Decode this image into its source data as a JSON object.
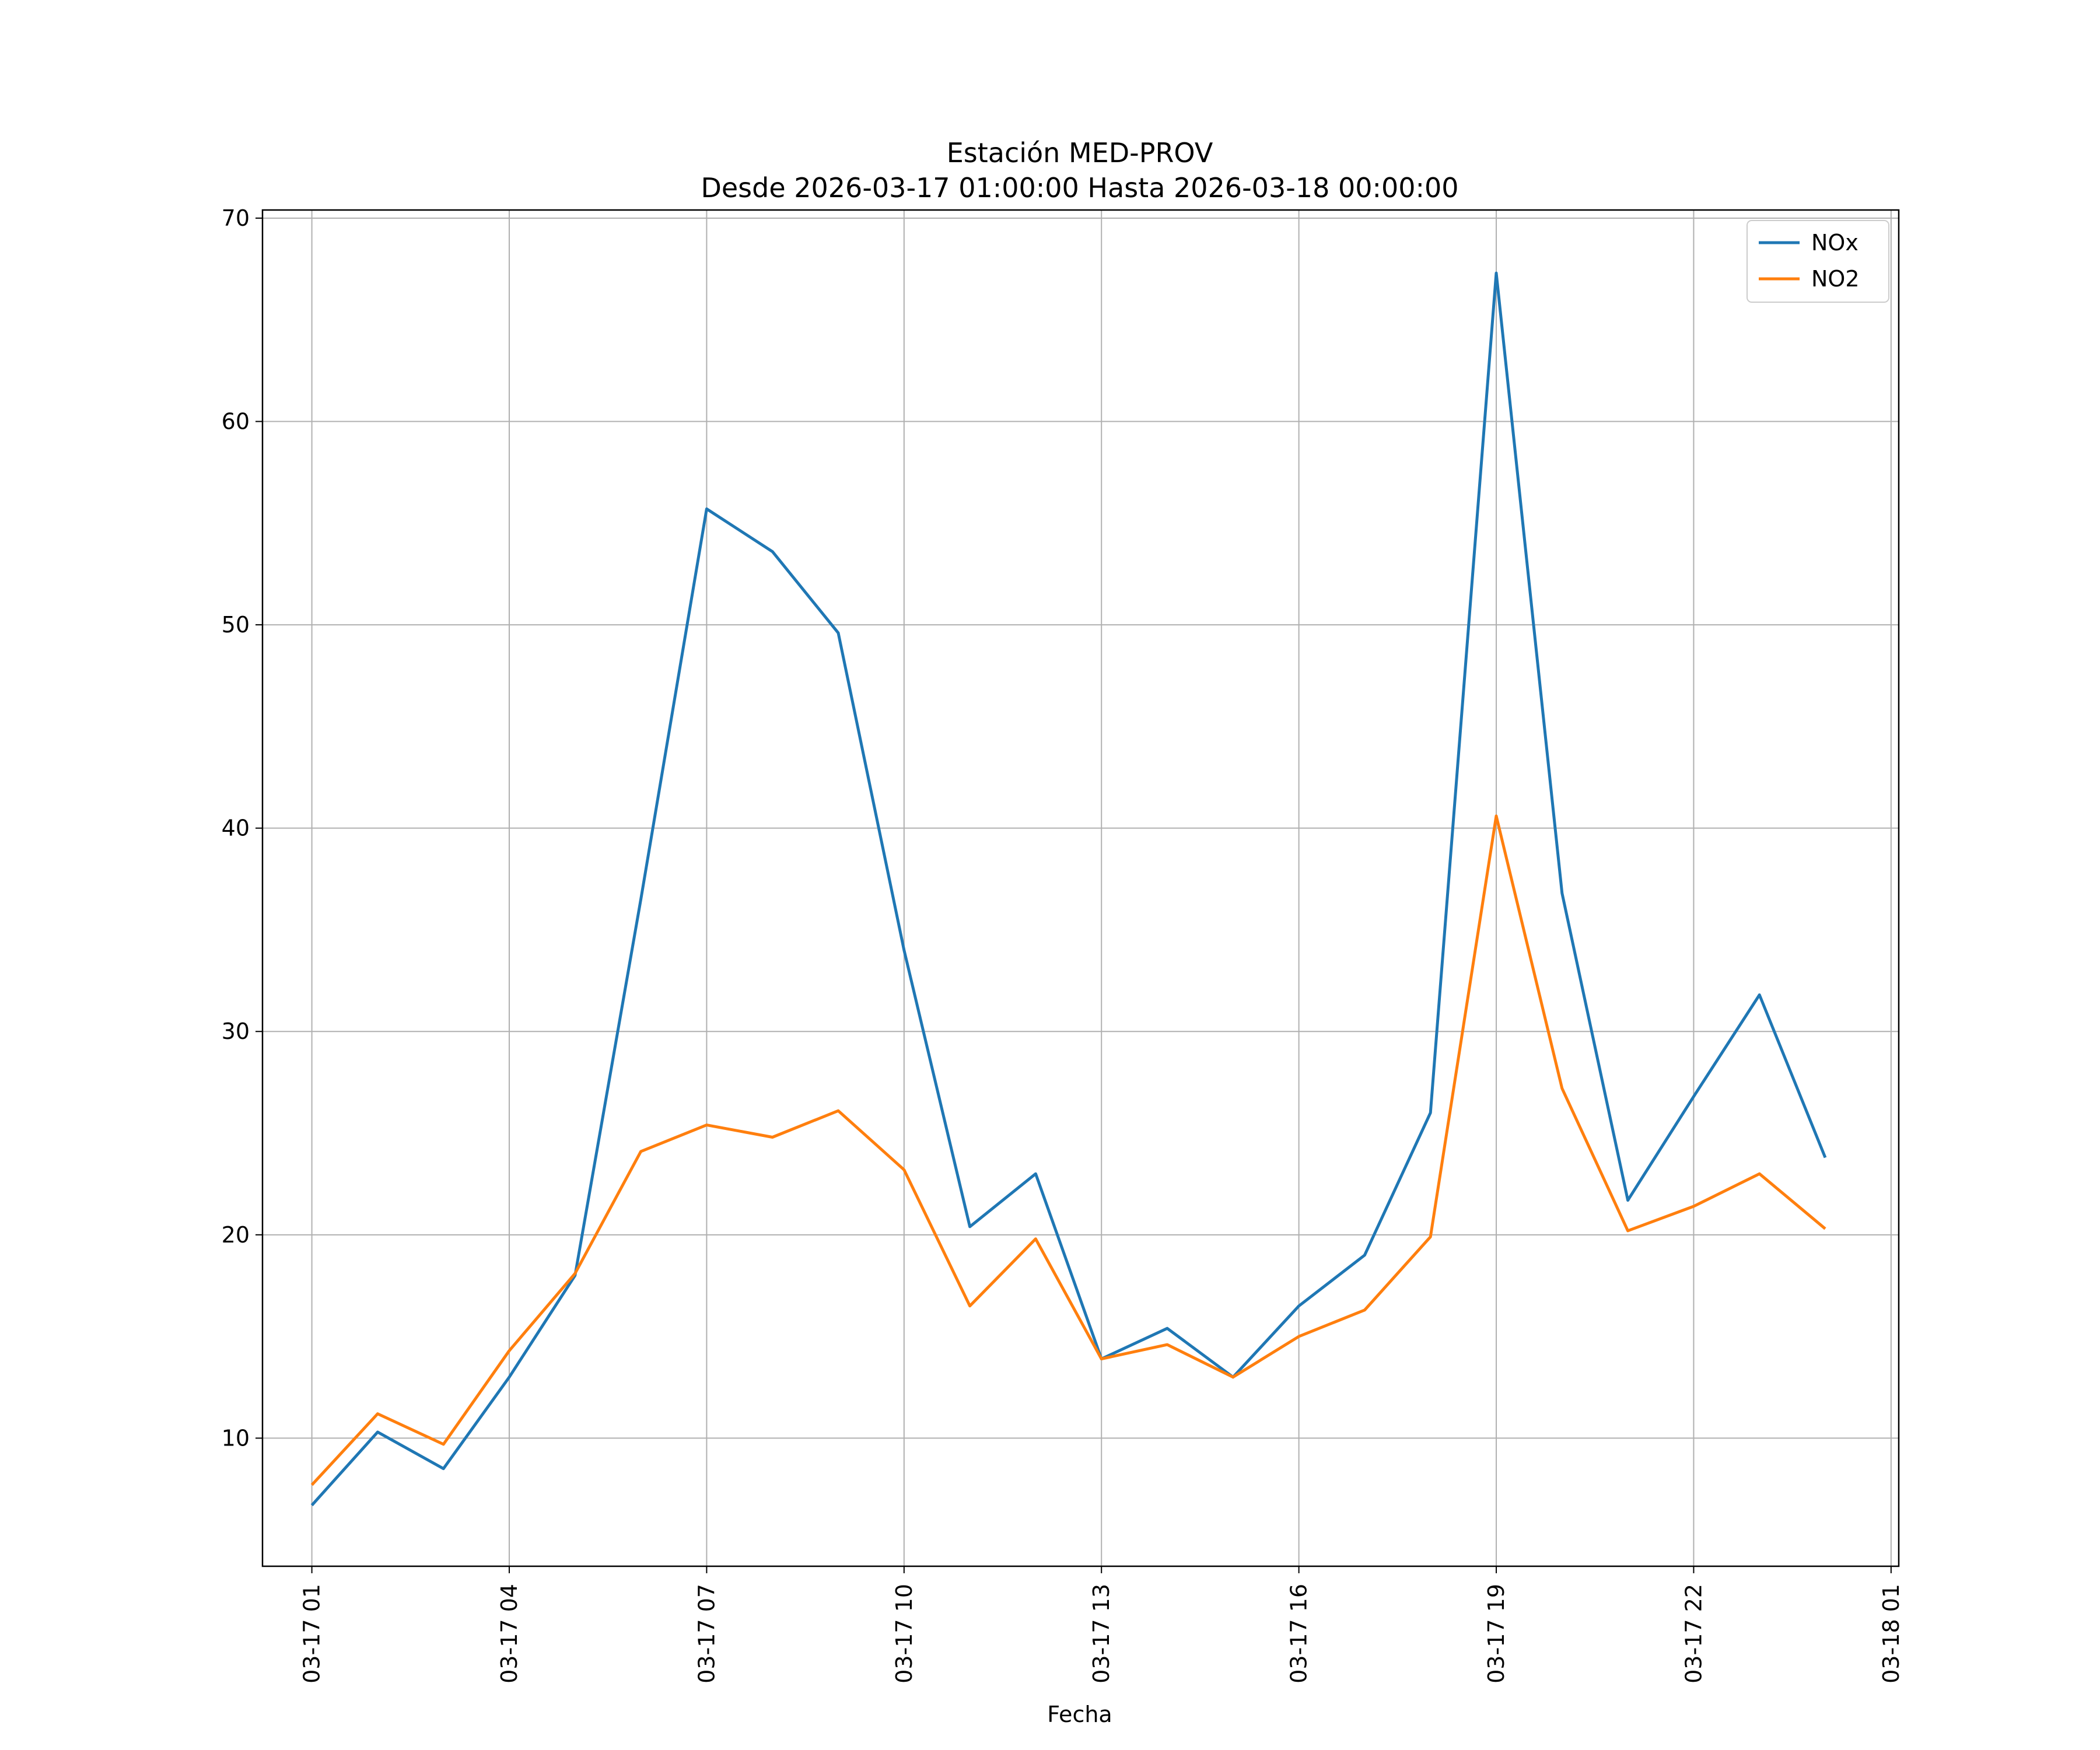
{
  "chart_data": {
    "type": "line",
    "title": "Estación MED-PROV",
    "subtitle": "Desde 2026-03-17 01:00:00 Hasta 2026-03-18 00:00:00",
    "xlabel": "Fecha",
    "ylabel": "",
    "x": [
      "03-17 01",
      "03-17 02",
      "03-17 03",
      "03-17 04",
      "03-17 05",
      "03-17 06",
      "03-17 07",
      "03-17 08",
      "03-17 09",
      "03-17 10",
      "03-17 11",
      "03-17 12",
      "03-17 13",
      "03-17 14",
      "03-17 15",
      "03-17 16",
      "03-17 17",
      "03-17 18",
      "03-17 19",
      "03-17 20",
      "03-17 21",
      "03-17 22",
      "03-17 23",
      "03-18 00"
    ],
    "x_tick_labels": [
      "03-17 01",
      "03-17 04",
      "03-17 07",
      "03-17 10",
      "03-17 13",
      "03-17 16",
      "03-17 19",
      "03-17 22",
      "03-18 01"
    ],
    "xlim": [
      "03-17 00:15",
      "03-18 01:07"
    ],
    "y_ticks": [
      10,
      20,
      30,
      40,
      50,
      60,
      70
    ],
    "ylim": [
      3.7,
      70.4
    ],
    "grid": true,
    "legend_position": "top-right",
    "series": [
      {
        "name": "NOx",
        "color": "#1f77b4",
        "values": [
          6.7,
          10.3,
          8.5,
          13.0,
          18.0,
          36.5,
          55.7,
          53.6,
          49.6,
          34.0,
          20.4,
          23.0,
          13.9,
          15.4,
          13.0,
          16.5,
          19.0,
          26.0,
          67.3,
          36.8,
          21.7,
          26.8,
          31.8,
          23.8
        ]
      },
      {
        "name": "NO2",
        "color": "#ff7f0e",
        "values": [
          7.7,
          11.2,
          9.7,
          14.3,
          18.1,
          24.1,
          25.4,
          24.8,
          26.1,
          23.2,
          16.5,
          19.8,
          13.9,
          14.6,
          13.0,
          15.0,
          16.3,
          19.9,
          40.6,
          27.2,
          20.2,
          21.4,
          23.0,
          20.3
        ]
      }
    ]
  }
}
